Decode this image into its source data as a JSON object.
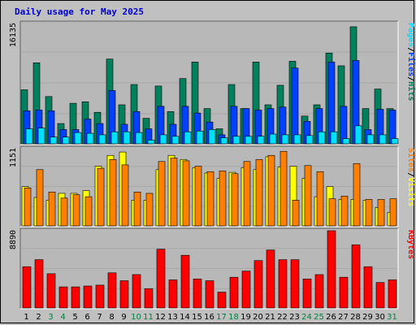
{
  "title": "Daily usage for May 2025",
  "colors": {
    "hits": "#00805C",
    "files": "#0040FF",
    "pages": "#00E0FF",
    "visits": "#FFFF00",
    "sites": "#FF8000",
    "kbytes": "#FF0000",
    "weekend_label": "#007F3F",
    "weekday_label": "#000000",
    "panel_bg": "#B8B8B8"
  },
  "right_labels": {
    "top": [
      "Pages",
      "/",
      "Files",
      "/",
      "Hits"
    ],
    "top_colors": [
      "#00E0FF",
      "#000000",
      "#0040FF",
      "#000000",
      "#00805C"
    ],
    "middle": [
      "Sites",
      "/",
      "Visits"
    ],
    "middle_colors": [
      "#FF8000",
      "#000000",
      "#FFFF00"
    ],
    "bottom": [
      "KBytes"
    ],
    "bottom_colors": [
      "#FF0000"
    ]
  },
  "chart_data": [
    {
      "type": "bar",
      "panel": "hits-files-pages",
      "ymax_label": "16135",
      "ylim": [
        0,
        16135
      ],
      "categories": [
        "1",
        "2",
        "3",
        "4",
        "5",
        "6",
        "7",
        "8",
        "9",
        "10",
        "11",
        "12",
        "13",
        "14",
        "15",
        "16",
        "17",
        "18",
        "19",
        "20",
        "21",
        "22",
        "23",
        "24",
        "25",
        "26",
        "27",
        "28",
        "29",
        "30",
        "31"
      ],
      "series": [
        {
          "name": "Hits",
          "values": [
            7200,
            10800,
            6300,
            2700,
            5400,
            5600,
            4200,
            11300,
            5200,
            7900,
            3400,
            7700,
            4300,
            8700,
            10900,
            4700,
            2000,
            7900,
            4700,
            10900,
            5200,
            7800,
            11000,
            3700,
            5200,
            12100,
            10400,
            15600,
            4700,
            7300,
            4700
          ]
        },
        {
          "name": "Files",
          "values": [
            4400,
            4500,
            4400,
            1900,
            1900,
            3300,
            2700,
            7100,
            2600,
            4300,
            2000,
            5000,
            2600,
            5000,
            4100,
            2900,
            1200,
            5000,
            4700,
            4500,
            4700,
            4900,
            10100,
            3000,
            4700,
            10900,
            5000,
            11100,
            1900,
            4600,
            4500
          ]
        },
        {
          "name": "Pages",
          "values": [
            2000,
            2100,
            900,
            900,
            1500,
            1400,
            1200,
            1600,
            1600,
            1500,
            500,
            1200,
            1000,
            1600,
            1700,
            1900,
            800,
            1000,
            1000,
            1000,
            1300,
            1200,
            1200,
            1100,
            1600,
            1600,
            700,
            2400,
            1200,
            1200,
            700
          ]
        }
      ]
    },
    {
      "type": "bar",
      "panel": "sites-visits",
      "ymax_label": "1151",
      "ylim": [
        0,
        1151
      ],
      "categories": [
        "1",
        "2",
        "3",
        "4",
        "5",
        "6",
        "7",
        "8",
        "9",
        "10",
        "11",
        "12",
        "13",
        "14",
        "15",
        "16",
        "17",
        "18",
        "19",
        "20",
        "21",
        "22",
        "23",
        "24",
        "25",
        "26",
        "27",
        "28",
        "29",
        "30",
        "31"
      ],
      "series": [
        {
          "name": "Visits",
          "values": [
            580,
            420,
            380,
            480,
            480,
            520,
            880,
            1040,
            1090,
            380,
            380,
            830,
            1040,
            980,
            860,
            780,
            700,
            790,
            860,
            830,
            1020,
            870,
            880,
            700,
            430,
            580,
            390,
            390,
            380,
            270,
            200
          ]
        },
        {
          "name": "Sites",
          "values": [
            560,
            830,
            500,
            410,
            460,
            430,
            850,
            980,
            900,
            500,
            480,
            950,
            1000,
            960,
            880,
            800,
            810,
            770,
            950,
            980,
            1040,
            1100,
            380,
            890,
            800,
            400,
            440,
            920,
            390,
            390,
            400
          ]
        }
      ]
    },
    {
      "type": "bar",
      "panel": "kbytes",
      "ymax_label": "8890",
      "ylim": [
        0,
        8890
      ],
      "categories": [
        "1",
        "2",
        "3",
        "4",
        "5",
        "6",
        "7",
        "8",
        "9",
        "10",
        "11",
        "12",
        "13",
        "14",
        "15",
        "16",
        "17",
        "18",
        "19",
        "20",
        "21",
        "22",
        "23",
        "24",
        "25",
        "26",
        "27",
        "28",
        "29",
        "30",
        "31"
      ],
      "series": [
        {
          "name": "KBytes",
          "values": [
            4700,
            5500,
            3900,
            2400,
            2400,
            2500,
            2600,
            4000,
            3100,
            3800,
            2200,
            6700,
            3200,
            6000,
            3300,
            3100,
            1800,
            3500,
            4200,
            5400,
            6600,
            5500,
            5500,
            3300,
            3800,
            8800,
            3500,
            7200,
            4700,
            2900,
            3200
          ]
        }
      ]
    }
  ],
  "weekend_days": [
    3,
    4,
    10,
    11,
    17,
    18,
    24,
    25,
    31
  ]
}
